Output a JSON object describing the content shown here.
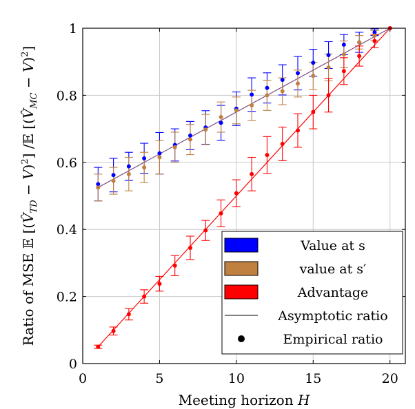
{
  "chart_data": {
    "type": "scatter",
    "title": "",
    "xlabel": "Meeting horizon H",
    "ylabel": "Ratio of MSE E[(V̂_TD − V)²] / E[(V̂_MC − V)²]",
    "xlim": [
      0,
      21
    ],
    "ylim": [
      0,
      1
    ],
    "x_ticks": [
      0,
      5,
      10,
      15,
      20
    ],
    "y_ticks": [
      0,
      0.2,
      0.4,
      0.6,
      0.8,
      1
    ],
    "grid": true,
    "legend_position": "bottom-right",
    "legend": {
      "entries": [
        "Value at s",
        "value at s′",
        "Advantage",
        "Asymptotic ratio",
        "Empirical ratio"
      ]
    },
    "colors": {
      "value_s": "#0000ff",
      "value_s_prime": "#bf8040",
      "advantage": "#ff0000",
      "asymptotic": "#7f4c7f"
    },
    "x": [
      1,
      2,
      3,
      4,
      5,
      6,
      7,
      8,
      9,
      10,
      11,
      12,
      13,
      14,
      15,
      16,
      17,
      18,
      19,
      20
    ],
    "series": [
      {
        "name": "Value at s",
        "color": "#0000ff",
        "values": [
          0.535,
          0.562,
          0.588,
          0.612,
          0.627,
          0.652,
          0.68,
          0.704,
          0.718,
          0.76,
          0.802,
          0.822,
          0.846,
          0.866,
          0.897,
          0.92,
          0.951,
          0.958,
          0.988,
          1.0
        ],
        "err": [
          0.05,
          0.05,
          0.042,
          0.045,
          0.062,
          0.048,
          0.042,
          0.05,
          0.052,
          0.05,
          0.05,
          0.045,
          0.045,
          0.05,
          0.04,
          0.04,
          0.03,
          0.03,
          0.01,
          0.0
        ]
      },
      {
        "name": "value at s′",
        "color": "#bf8040",
        "values": [
          0.525,
          0.545,
          0.565,
          0.585,
          0.615,
          0.645,
          0.668,
          0.698,
          0.735,
          0.755,
          0.77,
          0.8,
          0.812,
          0.835,
          0.858,
          0.883,
          0.922,
          0.958,
          0.978,
          1.0
        ],
        "err": [
          0.04,
          0.04,
          0.05,
          0.045,
          0.05,
          0.045,
          0.045,
          0.045,
          0.045,
          0.04,
          0.045,
          0.045,
          0.04,
          0.04,
          0.04,
          0.04,
          0.04,
          0.02,
          0.015,
          0.0
        ]
      },
      {
        "name": "Advantage",
        "color": "#ff0000",
        "values": [
          0.05,
          0.097,
          0.147,
          0.2,
          0.238,
          0.292,
          0.345,
          0.397,
          0.448,
          0.508,
          0.565,
          0.622,
          0.655,
          0.695,
          0.75,
          0.8,
          0.872,
          0.917,
          0.962,
          1.0
        ],
        "err": [
          0.005,
          0.012,
          0.017,
          0.02,
          0.022,
          0.03,
          0.035,
          0.03,
          0.04,
          0.04,
          0.05,
          0.055,
          0.05,
          0.05,
          0.05,
          0.05,
          0.04,
          0.03,
          0.02,
          0.0
        ]
      }
    ],
    "asymptotic_lines": [
      {
        "name": "Asymptotic ratio (value)",
        "color": "#7f4c7f",
        "x": [
          1,
          20
        ],
        "y": [
          0.525,
          1.0
        ]
      },
      {
        "name": "Asymptotic ratio (advantage)",
        "color": "#ff0000",
        "x": [
          1,
          20
        ],
        "y": [
          0.05,
          1.0
        ]
      }
    ]
  }
}
